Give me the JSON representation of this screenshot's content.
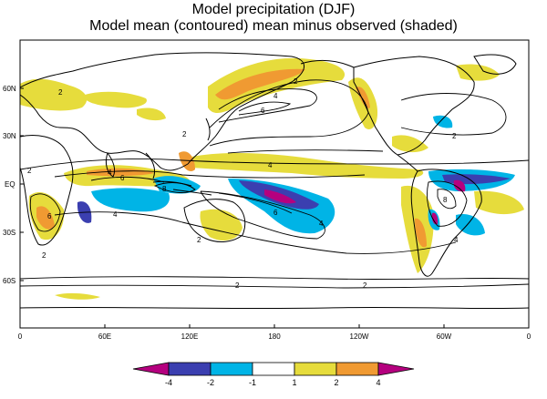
{
  "title": "Model precipitation (DJF)",
  "subtitle": "Model mean (contoured)  mean minus observed (shaded)",
  "lat_ticks": [
    "60N",
    "30N",
    "EQ",
    "30S",
    "60S"
  ],
  "lon_ticks": [
    "0",
    "60E",
    "120E",
    "180",
    "120W",
    "60W",
    "0"
  ],
  "contour_labels": [
    "2",
    "4",
    "6",
    "8"
  ],
  "legend": {
    "labels": [
      "-4",
      "-2",
      "-1",
      "1",
      "2",
      "4"
    ],
    "colors": [
      "#b5007f",
      "#3b3fb0",
      "#00b4e6",
      "#ffffff",
      "#e6dc3c",
      "#f09a32",
      "#b5007f"
    ]
  },
  "colors": {
    "strong_neg": "#b5007f",
    "mod_neg": "#3b3fb0",
    "weak_neg": "#00b4e6",
    "weak_pos": "#e6dc3c",
    "mod_pos": "#f09a32",
    "strong_pos": "#b5007f"
  }
}
